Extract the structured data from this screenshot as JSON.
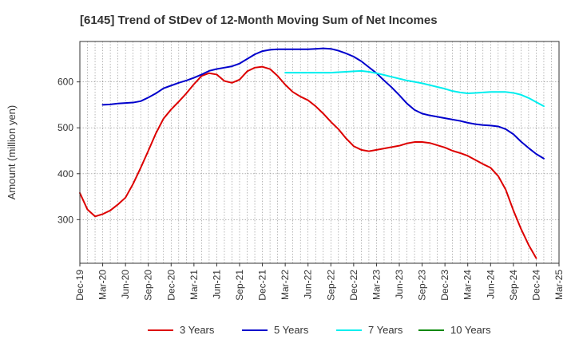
{
  "chart_data": {
    "type": "line",
    "title": "[6145]  Trend of StDev of 12-Month Moving Sum of Net Incomes",
    "ylabel": "Amount (million yen)",
    "xlabel": "",
    "ylim": [
      205,
      688
    ],
    "yticks": [
      300,
      400,
      500,
      600
    ],
    "x_ticks": [
      "Dec-19",
      "Mar-20",
      "Jun-20",
      "Sep-20",
      "Dec-20",
      "Mar-21",
      "Jun-21",
      "Sep-21",
      "Dec-21",
      "Mar-22",
      "Jun-22",
      "Sep-22",
      "Dec-22",
      "Mar-23",
      "Jun-23",
      "Sep-23",
      "Dec-23",
      "Mar-24",
      "Jun-24",
      "Sep-24",
      "Dec-24",
      "Mar-25"
    ],
    "grid": true,
    "legend_position": "bottom",
    "series": [
      {
        "name": "3 Years",
        "color": "#dd0000",
        "start_month_index": 0,
        "values": [
          358,
          322,
          307,
          312,
          320,
          333,
          348,
          378,
          413,
          450,
          488,
          520,
          540,
          557,
          575,
          595,
          613,
          619,
          616,
          602,
          598,
          605,
          623,
          631,
          633,
          628,
          613,
          594,
          578,
          568,
          560,
          547,
          531,
          513,
          497,
          477,
          460,
          452,
          449,
          452,
          455,
          458,
          461,
          466,
          469,
          469,
          467,
          462,
          457,
          450,
          445,
          439,
          430,
          421,
          413,
          395,
          365,
          320,
          280,
          245,
          216
        ]
      },
      {
        "name": "5 Years",
        "color": "#0000cc",
        "start_month_index": 3,
        "values": [
          550,
          551,
          553,
          554,
          555,
          558,
          566,
          575,
          586,
          592,
          598,
          603,
          609,
          616,
          624,
          628,
          631,
          634,
          640,
          650,
          660,
          667,
          670,
          671,
          671,
          671,
          671,
          671,
          672,
          673,
          672,
          668,
          662,
          655,
          645,
          632,
          619,
          603,
          588,
          571,
          553,
          539,
          531,
          527,
          524,
          521,
          518,
          515,
          511,
          508,
          506,
          505,
          503,
          497,
          486,
          470,
          456,
          443,
          433
        ]
      },
      {
        "name": "7 Years",
        "color": "#00eeee",
        "start_month_index": 27,
        "values": [
          620,
          620,
          620,
          620,
          620,
          620,
          620,
          621,
          622,
          623,
          624,
          622,
          619,
          615,
          611,
          607,
          603,
          600,
          597,
          593,
          589,
          585,
          580,
          577,
          575,
          576,
          577,
          578,
          578,
          578,
          576,
          572,
          565,
          556,
          547
        ]
      },
      {
        "name": "10 Years",
        "color": "#008800",
        "start_month_index": 0,
        "values": []
      }
    ]
  }
}
